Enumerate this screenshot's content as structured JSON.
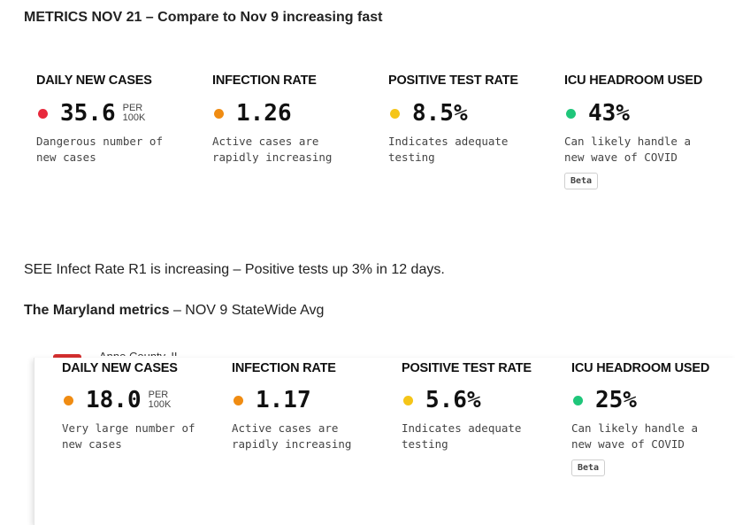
{
  "heading1": "METRICS NOV 21 – Compare to Nov 9 increasing fast",
  "section1": [
    {
      "title": "DAILY NEW CASES",
      "value": "35.6",
      "unit_top": "PER",
      "unit_bottom": "100K",
      "dot_color": "#e8293c",
      "desc_line1": "Dangerous number of",
      "desc_line2": "new cases"
    },
    {
      "title": "INFECTION RATE",
      "value": "1.26",
      "dot_color": "#f08c12",
      "desc_line1": "Active cases are",
      "desc_line2": "rapidly increasing"
    },
    {
      "title": "POSITIVE TEST RATE",
      "value": "8.5%",
      "dot_color": "#f5c518",
      "desc_line1": "Indicates adequate",
      "desc_line2": "testing"
    },
    {
      "title": "ICU HEADROOM USED",
      "value": "43%",
      "dot_color": "#1fc67a",
      "desc_line1": "Can likely handle a",
      "desc_line2": "new wave of COVID",
      "badge": "Beta"
    }
  ],
  "para1": "SEE Infect Rate R1 is increasing – Positive tests up 3% in 12 days.",
  "para2_bold": "The Maryland metrics",
  "para2_rest": " – NOV 9 StateWide Avg",
  "cut_text": "Anne County, IL",
  "section2": [
    {
      "title": "DAILY NEW CASES",
      "value": "18.0",
      "unit_top": "PER",
      "unit_bottom": "100K",
      "dot_color": "#f08c12",
      "desc_line1": "Very large number of",
      "desc_line2": "new cases"
    },
    {
      "title": "INFECTION RATE",
      "value": "1.17",
      "dot_color": "#f08c12",
      "desc_line1": "Active cases are",
      "desc_line2": "rapidly increasing"
    },
    {
      "title": "POSITIVE TEST RATE",
      "value": "5.6%",
      "dot_color": "#f5c518",
      "desc_line1": "Indicates adequate",
      "desc_line2": "testing"
    },
    {
      "title": "ICU HEADROOM USED",
      "value": "25%",
      "dot_color": "#1fc67a",
      "desc_line1": "Can likely handle a",
      "desc_line2": "new wave of COVID",
      "badge": "Beta"
    }
  ]
}
